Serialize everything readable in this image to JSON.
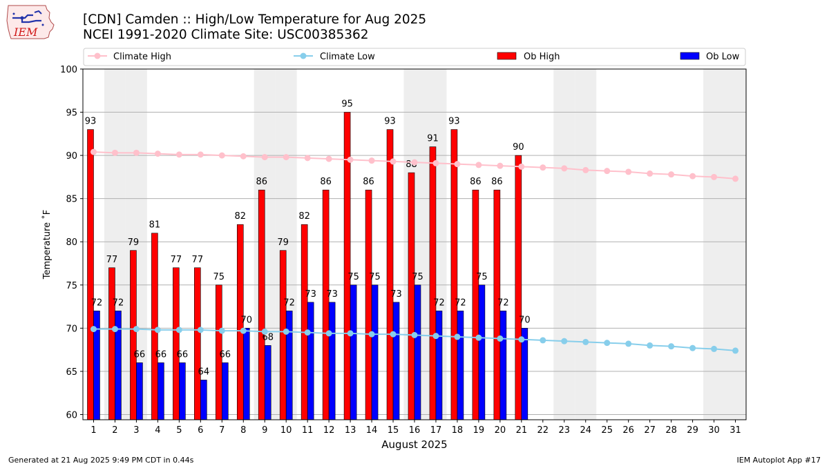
{
  "header": {
    "title_line1": "[CDN] Camden :: High/Low Temperature for Aug 2025",
    "title_line2": "NCEI 1991-2020 Climate Site: USC00385362",
    "logo_text": "IEM"
  },
  "footer": {
    "left": "Generated at 21 Aug 2025 9:49 PM CDT in 0.44s",
    "right": "IEM Autoplot App #17"
  },
  "chart_data": {
    "type": "bar",
    "xlabel": "August 2025",
    "ylabel": "Temperature $^\\circ$F",
    "ylabel_display": "Temperature ˚F",
    "ylim": [
      59.4,
      100
    ],
    "yticks": [
      60,
      65,
      70,
      75,
      80,
      85,
      90,
      95,
      100
    ],
    "grid": true,
    "legend_position": "top",
    "days": [
      1,
      2,
      3,
      4,
      5,
      6,
      7,
      8,
      9,
      10,
      11,
      12,
      13,
      14,
      15,
      16,
      17,
      18,
      19,
      20,
      21,
      22,
      23,
      24,
      25,
      26,
      27,
      28,
      29,
      30,
      31
    ],
    "weekend_shading_days": [
      2,
      3,
      9,
      10,
      16,
      17,
      23,
      24,
      30,
      31
    ],
    "series": [
      {
        "name": "Ob High",
        "kind": "bar",
        "color": "#ff0000",
        "values": [
          93,
          77,
          79,
          81,
          77,
          77,
          75,
          82,
          86,
          79,
          82,
          86,
          95,
          86,
          93,
          88,
          91,
          93,
          86,
          86,
          90
        ]
      },
      {
        "name": "Ob Low",
        "kind": "bar",
        "color": "#0000ff",
        "values": [
          72,
          72,
          66,
          66,
          66,
          64,
          66,
          70,
          68,
          72,
          73,
          73,
          75,
          75,
          73,
          75,
          72,
          72,
          75,
          72,
          70
        ]
      },
      {
        "name": "Climate High",
        "kind": "line",
        "color": "#ffc0cb",
        "values": [
          90.4,
          90.3,
          90.3,
          90.2,
          90.1,
          90.1,
          90.0,
          89.9,
          89.8,
          89.8,
          89.7,
          89.6,
          89.5,
          89.4,
          89.3,
          89.2,
          89.1,
          89.0,
          88.9,
          88.8,
          88.7,
          88.6,
          88.5,
          88.3,
          88.2,
          88.1,
          87.9,
          87.8,
          87.6,
          87.5,
          87.3
        ]
      },
      {
        "name": "Climate Low",
        "kind": "line",
        "color": "#87ceeb",
        "values": [
          69.9,
          69.9,
          69.9,
          69.8,
          69.8,
          69.8,
          69.7,
          69.7,
          69.6,
          69.6,
          69.5,
          69.4,
          69.4,
          69.3,
          69.3,
          69.2,
          69.1,
          69.0,
          68.9,
          68.8,
          68.7,
          68.6,
          68.5,
          68.4,
          68.3,
          68.2,
          68.0,
          67.9,
          67.7,
          67.6,
          67.4
        ]
      }
    ]
  }
}
